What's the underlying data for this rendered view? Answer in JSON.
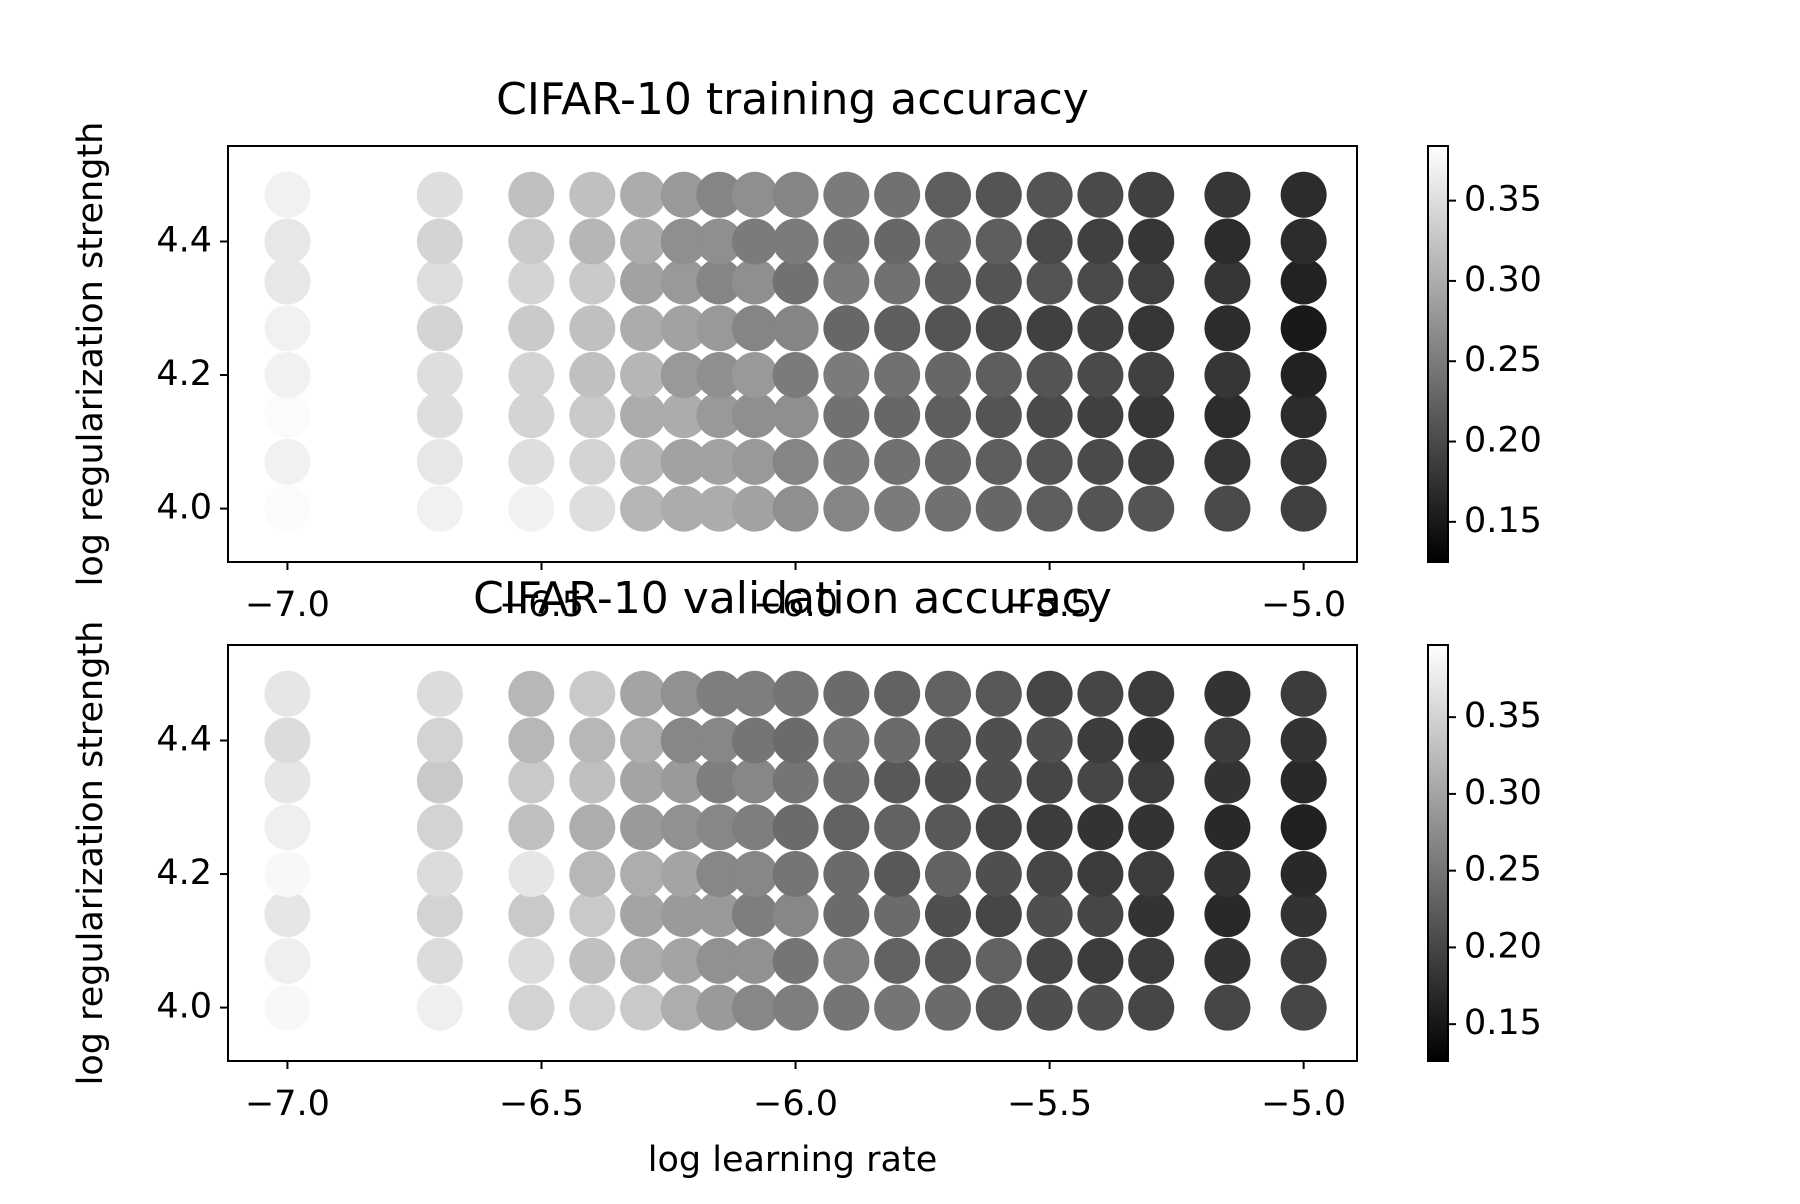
{
  "chart_data": [
    {
      "type": "scatter",
      "title": "CIFAR-10 training accuracy",
      "ylabel": "log regularization strength",
      "colormap": "gray",
      "x": [
        -7.0,
        -6.7,
        -6.52,
        -6.4,
        -6.3,
        -6.22,
        -6.15,
        -6.08,
        -6.0,
        -5.9,
        -5.8,
        -5.7,
        -5.6,
        -5.5,
        -5.4,
        -5.3,
        -5.15,
        -5.0
      ],
      "y": [
        4.0,
        4.07,
        4.14,
        4.2,
        4.27,
        4.34,
        4.4,
        4.47
      ],
      "values": [
        [
          0.38,
          0.37,
          0.38,
          0.37,
          0.37,
          0.36,
          0.36,
          0.37
        ],
        [
          0.37,
          0.36,
          0.35,
          0.35,
          0.34,
          0.35,
          0.34,
          0.35
        ],
        [
          0.37,
          0.35,
          0.34,
          0.34,
          0.33,
          0.34,
          0.33,
          0.32
        ],
        [
          0.35,
          0.34,
          0.33,
          0.32,
          0.32,
          0.33,
          0.31,
          0.32
        ],
        [
          0.31,
          0.31,
          0.3,
          0.31,
          0.3,
          0.29,
          0.3,
          0.3
        ],
        [
          0.3,
          0.29,
          0.3,
          0.28,
          0.29,
          0.28,
          0.27,
          0.28
        ],
        [
          0.3,
          0.29,
          0.28,
          0.27,
          0.28,
          0.26,
          0.27,
          0.26
        ],
        [
          0.29,
          0.28,
          0.27,
          0.28,
          0.26,
          0.27,
          0.25,
          0.27
        ],
        [
          0.27,
          0.26,
          0.27,
          0.25,
          0.26,
          0.24,
          0.25,
          0.26
        ],
        [
          0.26,
          0.25,
          0.24,
          0.25,
          0.23,
          0.25,
          0.24,
          0.25
        ],
        [
          0.25,
          0.24,
          0.23,
          0.24,
          0.22,
          0.24,
          0.23,
          0.24
        ],
        [
          0.24,
          0.23,
          0.22,
          0.23,
          0.21,
          0.22,
          0.23,
          0.22
        ],
        [
          0.23,
          0.22,
          0.21,
          0.22,
          0.2,
          0.21,
          0.22,
          0.21
        ],
        [
          0.22,
          0.21,
          0.2,
          0.21,
          0.19,
          0.21,
          0.2,
          0.21
        ],
        [
          0.21,
          0.2,
          0.19,
          0.2,
          0.19,
          0.2,
          0.19,
          0.2
        ],
        [
          0.21,
          0.19,
          0.18,
          0.19,
          0.18,
          0.19,
          0.18,
          0.19
        ],
        [
          0.2,
          0.18,
          0.17,
          0.18,
          0.17,
          0.18,
          0.17,
          0.18
        ],
        [
          0.19,
          0.18,
          0.17,
          0.16,
          0.15,
          0.16,
          0.17,
          0.17
        ]
      ],
      "xlim": [
        -7.117,
        -4.895
      ],
      "ylim": [
        3.92,
        4.543
      ],
      "xticks": [
        {
          "value": -7.0,
          "label": "−7.0"
        },
        {
          "value": -6.5,
          "label": "−6.5"
        },
        {
          "value": -6.0,
          "label": "−6.0"
        },
        {
          "value": -5.5,
          "label": "−5.5"
        },
        {
          "value": -5.0,
          "label": "−5.0"
        }
      ],
      "yticks": [
        {
          "value": 4.0,
          "label": "4.0"
        },
        {
          "value": 4.2,
          "label": "4.2"
        },
        {
          "value": 4.4,
          "label": "4.4"
        }
      ],
      "clim": [
        0.125,
        0.384
      ],
      "cticks": [
        0.15,
        {
          "value": 0.2,
          "label": "0.20"
        },
        0.25,
        {
          "value": 0.3,
          "label": "0.30"
        },
        0.35
      ]
    },
    {
      "type": "scatter",
      "title": "CIFAR-10 validation accuracy",
      "xlabel": "log learning rate",
      "ylabel": "log regularization strength",
      "colormap": "gray",
      "x": [
        -7.0,
        -6.7,
        -6.52,
        -6.4,
        -6.3,
        -6.22,
        -6.15,
        -6.08,
        -6.0,
        -5.9,
        -5.8,
        -5.7,
        -5.6,
        -5.5,
        -5.4,
        -5.3,
        -5.15,
        -5.0
      ],
      "y": [
        4.0,
        4.07,
        4.14,
        4.2,
        4.27,
        4.34,
        4.4,
        4.47
      ],
      "values": [
        [
          0.39,
          0.38,
          0.37,
          0.39,
          0.38,
          0.37,
          0.36,
          0.37
        ],
        [
          0.38,
          0.36,
          0.35,
          0.36,
          0.35,
          0.34,
          0.35,
          0.36
        ],
        [
          0.35,
          0.36,
          0.34,
          0.37,
          0.33,
          0.34,
          0.32,
          0.32
        ],
        [
          0.35,
          0.33,
          0.34,
          0.32,
          0.31,
          0.33,
          0.32,
          0.34
        ],
        [
          0.34,
          0.31,
          0.3,
          0.31,
          0.29,
          0.3,
          0.31,
          0.3
        ],
        [
          0.31,
          0.3,
          0.29,
          0.3,
          0.28,
          0.29,
          0.27,
          0.28
        ],
        [
          0.29,
          0.28,
          0.29,
          0.27,
          0.27,
          0.26,
          0.27,
          0.26
        ],
        [
          0.27,
          0.28,
          0.26,
          0.27,
          0.26,
          0.27,
          0.25,
          0.26
        ],
        [
          0.26,
          0.25,
          0.27,
          0.25,
          0.24,
          0.25,
          0.24,
          0.25
        ],
        [
          0.25,
          0.26,
          0.24,
          0.24,
          0.23,
          0.24,
          0.25,
          0.24
        ],
        [
          0.25,
          0.23,
          0.24,
          0.22,
          0.23,
          0.22,
          0.24,
          0.23
        ],
        [
          0.24,
          0.22,
          0.21,
          0.23,
          0.22,
          0.21,
          0.22,
          0.23
        ],
        [
          0.22,
          0.23,
          0.2,
          0.21,
          0.2,
          0.21,
          0.21,
          0.22
        ],
        [
          0.21,
          0.2,
          0.21,
          0.2,
          0.19,
          0.2,
          0.21,
          0.2
        ],
        [
          0.21,
          0.19,
          0.2,
          0.19,
          0.18,
          0.2,
          0.19,
          0.2
        ],
        [
          0.2,
          0.19,
          0.18,
          0.19,
          0.18,
          0.19,
          0.18,
          0.19
        ],
        [
          0.2,
          0.18,
          0.17,
          0.18,
          0.17,
          0.18,
          0.19,
          0.18
        ],
        [
          0.2,
          0.19,
          0.18,
          0.17,
          0.16,
          0.17,
          0.18,
          0.19
        ]
      ],
      "xlim": [
        -7.117,
        -4.895
      ],
      "ylim": [
        3.92,
        4.543
      ],
      "xticks": [
        {
          "value": -7.0,
          "label": "−7.0"
        },
        {
          "value": -6.5,
          "label": "−6.5"
        },
        {
          "value": -6.0,
          "label": "−6.0"
        },
        {
          "value": -5.5,
          "label": "−5.5"
        },
        {
          "value": -5.0,
          "label": "−5.0"
        }
      ],
      "yticks": [
        {
          "value": 4.0,
          "label": "4.0"
        },
        {
          "value": 4.2,
          "label": "4.2"
        },
        {
          "value": 4.4,
          "label": "4.4"
        }
      ],
      "clim": [
        0.126,
        0.397
      ],
      "cticks": [
        0.15,
        {
          "value": 0.2,
          "label": "0.20"
        },
        0.25,
        {
          "value": 0.3,
          "label": "0.30"
        },
        0.35
      ]
    }
  ]
}
